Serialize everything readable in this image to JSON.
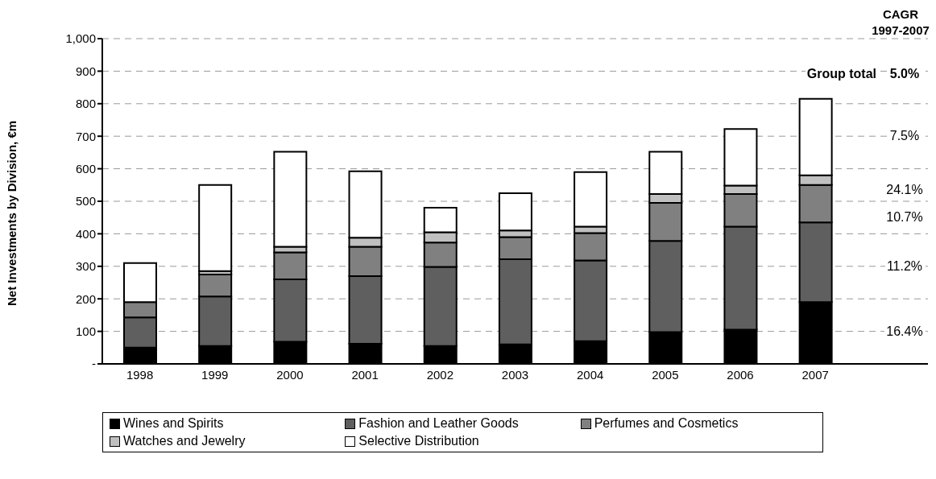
{
  "chart_data": {
    "type": "bar",
    "stacked": true,
    "ylabel": "Net Investments by Division, €m",
    "categories": [
      "1998",
      "1999",
      "2000",
      "2001",
      "2002",
      "2003",
      "2004",
      "2005",
      "2006",
      "2007"
    ],
    "series": [
      {
        "name": "Wines and Spirits",
        "color": "#000000",
        "values": [
          50,
          55,
          68,
          62,
          55,
          60,
          70,
          98,
          105,
          190
        ]
      },
      {
        "name": "Fashion and Leather Goods",
        "color": "#5f5f5f",
        "values": [
          93,
          152,
          192,
          208,
          243,
          262,
          248,
          280,
          317,
          245
        ]
      },
      {
        "name": "Perfumes and Cosmetics",
        "color": "#808080",
        "values": [
          47,
          68,
          83,
          90,
          75,
          68,
          84,
          117,
          100,
          115
        ]
      },
      {
        "name": "Watches and Jewelry",
        "color": "#c0c0c0",
        "values": [
          null,
          10,
          17,
          28,
          32,
          20,
          20,
          27,
          26,
          30
        ]
      },
      {
        "name": "Selective Distribution",
        "color": "#ffffff",
        "values": [
          120,
          265,
          292,
          204,
          75,
          115,
          168,
          130,
          174,
          235
        ]
      }
    ],
    "ylim": [
      0,
      1000
    ],
    "yticks": [
      {
        "value": 0,
        "label": "-"
      },
      100,
      200,
      300,
      400,
      500,
      600,
      700,
      800,
      900,
      {
        "value": 1000,
        "label": "1,000"
      }
    ],
    "grid": "y",
    "legend": "bottom",
    "annotations": [
      "CAGR 1997-2007",
      "Group total",
      "5.0%",
      "7.5%",
      "24.1%",
      "10.7%",
      "11.2%",
      "16.4%"
    ]
  }
}
